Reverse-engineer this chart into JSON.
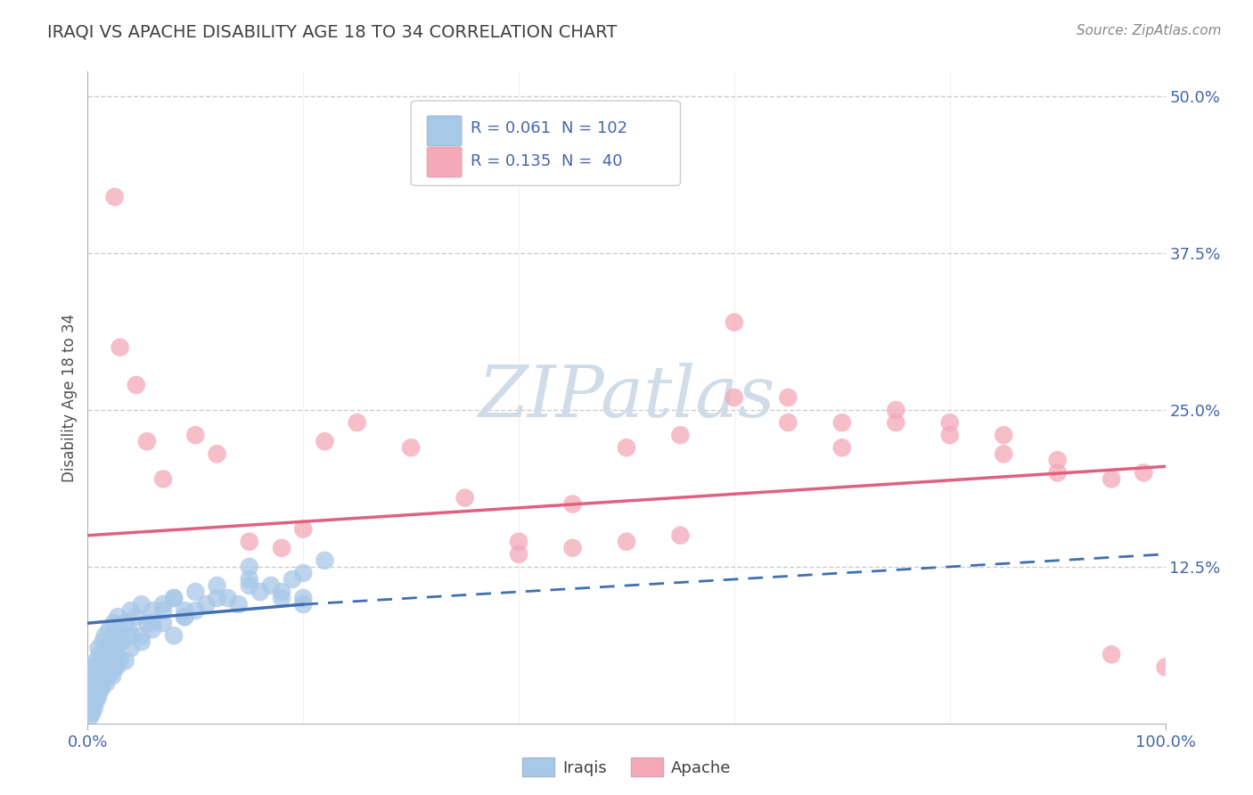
{
  "title": "IRAQI VS APACHE DISABILITY AGE 18 TO 34 CORRELATION CHART",
  "source": "Source: ZipAtlas.com",
  "ylabel": "Disability Age 18 to 34",
  "xlim": [
    0,
    100
  ],
  "ylim": [
    0,
    52
  ],
  "iraqi_R": 0.061,
  "iraqi_N": 102,
  "apache_R": 0.135,
  "apache_N": 40,
  "iraqi_color": "#a8c8e8",
  "apache_color": "#f4a8b8",
  "iraqi_line_color": "#4070b0",
  "apache_line_color": "#e06080",
  "iraqi_line_dash_color": "#7090b8",
  "watermark_text": "ZIPatlas",
  "watermark_color": "#d0dce8",
  "title_color": "#404040",
  "axis_label_color": "#4466aa",
  "grid_color": "#c8c8c8",
  "legend_text_color": "#4466aa",
  "yticks": [
    12.5,
    25.0,
    37.5,
    50.0
  ],
  "xticks": [
    0,
    100
  ],
  "iraqi_x": [
    0.2,
    0.3,
    0.3,
    0.4,
    0.4,
    0.5,
    0.5,
    0.6,
    0.7,
    0.8,
    0.9,
    1.0,
    1.0,
    1.1,
    1.2,
    1.3,
    1.4,
    1.5,
    1.6,
    1.7,
    1.8,
    1.9,
    2.0,
    2.1,
    2.2,
    2.3,
    2.4,
    2.5,
    2.6,
    2.7,
    2.8,
    3.0,
    3.2,
    3.5,
    3.8,
    4.0,
    4.5,
    5.0,
    5.5,
    6.0,
    7.0,
    8.0,
    9.0,
    10.0,
    11.0,
    12.0,
    13.0,
    14.0,
    15.0,
    16.0,
    17.0,
    18.0,
    19.0,
    20.0,
    0.3,
    0.4,
    0.5,
    0.6,
    0.8,
    1.0,
    1.2,
    1.5,
    1.8,
    2.0,
    2.5,
    3.0,
    3.5,
    4.0,
    5.0,
    6.0,
    7.0,
    8.0,
    9.0,
    10.0,
    12.0,
    15.0,
    18.0,
    20.0,
    0.2,
    0.3,
    0.4,
    0.5,
    0.6,
    0.7,
    0.8,
    0.9,
    1.0,
    1.1,
    1.3,
    1.5,
    1.7,
    2.0,
    2.3,
    2.7,
    3.0,
    4.0,
    5.0,
    6.0,
    7.0,
    8.0,
    9.0,
    15.0,
    20.0,
    22.0
  ],
  "iraqi_y": [
    3.5,
    2.0,
    4.0,
    1.5,
    3.0,
    2.5,
    4.5,
    3.2,
    2.8,
    5.0,
    4.2,
    6.0,
    3.5,
    5.5,
    4.8,
    3.0,
    6.5,
    5.0,
    7.0,
    4.5,
    6.0,
    5.5,
    7.5,
    4.0,
    6.5,
    5.0,
    8.0,
    4.5,
    7.0,
    5.5,
    8.5,
    7.0,
    6.5,
    8.0,
    7.5,
    9.0,
    8.5,
    9.5,
    8.0,
    9.0,
    9.5,
    10.0,
    9.0,
    10.5,
    9.5,
    11.0,
    10.0,
    9.5,
    11.5,
    10.5,
    11.0,
    10.0,
    11.5,
    10.0,
    1.0,
    2.0,
    1.5,
    3.0,
    2.5,
    4.0,
    3.5,
    5.0,
    4.5,
    6.0,
    5.5,
    6.5,
    5.0,
    7.0,
    6.5,
    7.5,
    8.0,
    7.0,
    8.5,
    9.0,
    10.0,
    11.0,
    10.5,
    12.0,
    0.5,
    1.0,
    0.8,
    1.5,
    1.2,
    2.0,
    1.8,
    2.5,
    2.2,
    3.0,
    2.8,
    3.5,
    3.2,
    4.0,
    3.8,
    4.5,
    5.0,
    6.0,
    7.0,
    8.0,
    9.0,
    10.0,
    8.5,
    12.5,
    9.5,
    13.0
  ],
  "apache_x": [
    2.5,
    3.0,
    4.5,
    5.5,
    7.0,
    10.0,
    12.0,
    15.0,
    18.0,
    20.0,
    22.0,
    25.0,
    30.0,
    35.0,
    40.0,
    45.0,
    50.0,
    55.0,
    60.0,
    65.0,
    70.0,
    75.0,
    80.0,
    85.0,
    90.0,
    95.0,
    98.0,
    100.0,
    60.0,
    65.0,
    70.0,
    75.0,
    80.0,
    85.0,
    90.0,
    95.0,
    50.0,
    55.0,
    45.0,
    40.0
  ],
  "apache_y": [
    42.0,
    30.0,
    27.0,
    22.5,
    19.5,
    23.0,
    21.5,
    14.5,
    14.0,
    15.5,
    22.5,
    24.0,
    22.0,
    18.0,
    14.5,
    17.5,
    22.0,
    23.0,
    26.0,
    24.0,
    22.0,
    24.0,
    24.0,
    23.0,
    21.0,
    19.5,
    20.0,
    4.5,
    32.0,
    26.0,
    24.0,
    25.0,
    23.0,
    21.5,
    20.0,
    5.5,
    14.5,
    15.0,
    14.0,
    13.5
  ],
  "iraqi_trend_x0": 0,
  "iraqi_trend_y0": 8.0,
  "iraqi_trend_x1": 20,
  "iraqi_trend_y1": 9.5,
  "iraqi_dash_x0": 20,
  "iraqi_dash_y0": 9.5,
  "iraqi_dash_x1": 100,
  "iraqi_dash_y1": 13.5,
  "apache_trend_x0": 0,
  "apache_trend_y0": 15.0,
  "apache_trend_x1": 100,
  "apache_trend_y1": 20.5
}
